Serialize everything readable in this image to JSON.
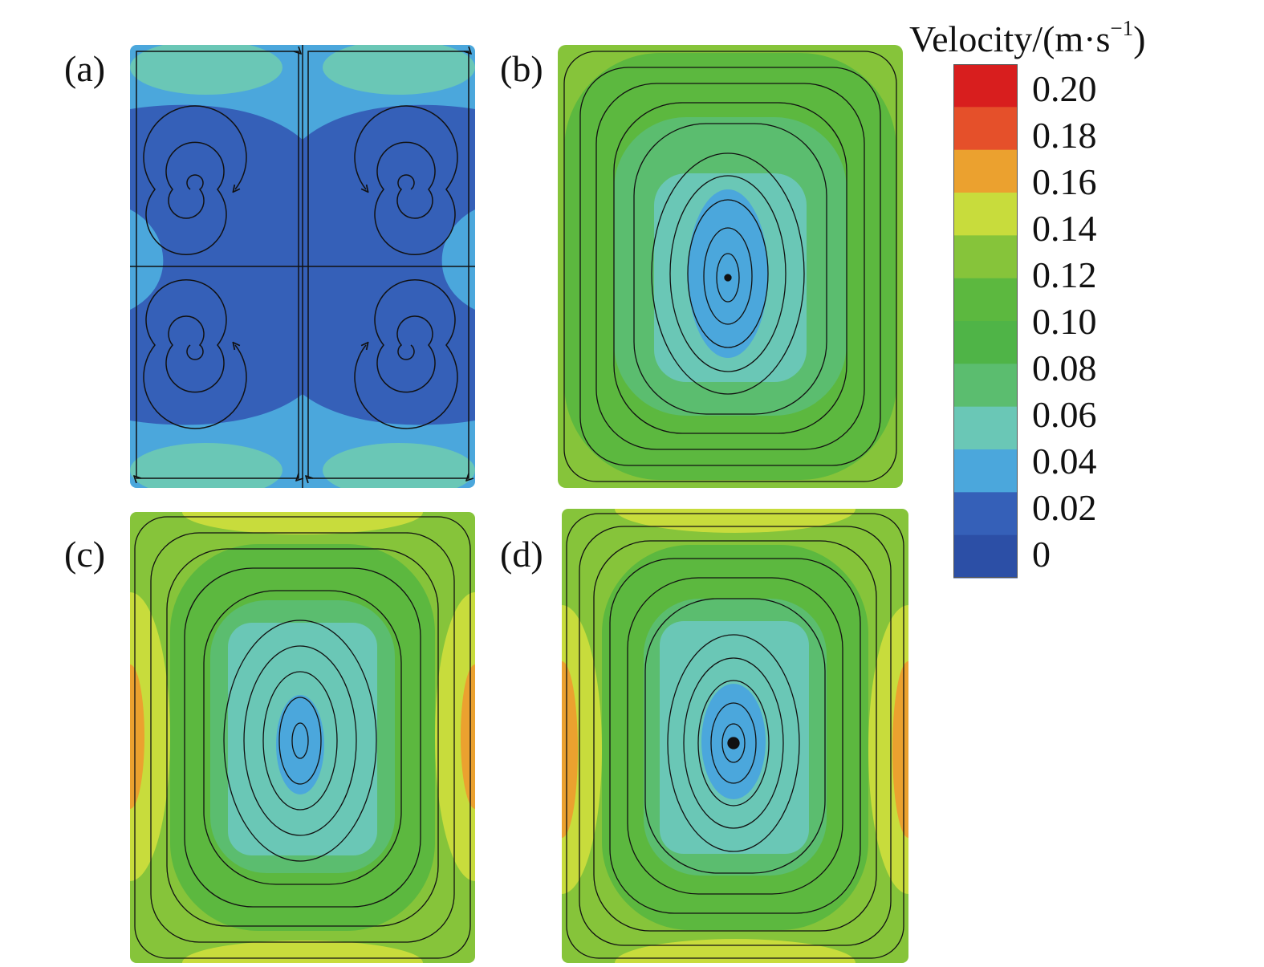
{
  "figure": {
    "panels": [
      {
        "label": "(a)"
      },
      {
        "label": "(b)"
      },
      {
        "label": "(c)"
      },
      {
        "label": "(d)"
      }
    ]
  },
  "colorbar": {
    "title": "Velocity/(m·s",
    "title_exponent": "−1",
    "title_close": ")",
    "ticks": [
      "0.20",
      "0.18",
      "0.16",
      "0.14",
      "0.12",
      "0.10",
      "0.08",
      "0.06",
      "0.04",
      "0.02",
      "0"
    ],
    "colors": [
      "#d81e1e",
      "#e5502a",
      "#eba12f",
      "#c8dc3c",
      "#86c43a",
      "#5cb83f",
      "#4fb447",
      "#5bbd6f",
      "#6ac7b6",
      "#4ba7dc",
      "#3560b8",
      "#2c4fa6"
    ]
  },
  "chart_data": [
    {
      "type": "heatmap",
      "panel": "(a)",
      "structure": "four counter-rotating vortices",
      "colorbar_range": [
        0,
        0.2
      ],
      "vortex_center_speed": 0.0,
      "max_speed": 0.04
    },
    {
      "type": "heatmap",
      "panel": "(b)",
      "structure": "single central vortex",
      "colorbar_range": [
        0,
        0.2
      ],
      "vortex_center_speed": 0.02,
      "max_speed": 0.12
    },
    {
      "type": "heatmap",
      "panel": "(c)",
      "structure": "single central vortex",
      "colorbar_range": [
        0,
        0.2
      ],
      "vortex_center_speed": 0.02,
      "max_speed": 0.16
    },
    {
      "type": "heatmap",
      "panel": "(d)",
      "structure": "single central vortex",
      "colorbar_range": [
        0,
        0.2
      ],
      "vortex_center_speed": 0.02,
      "max_speed": 0.16
    }
  ]
}
